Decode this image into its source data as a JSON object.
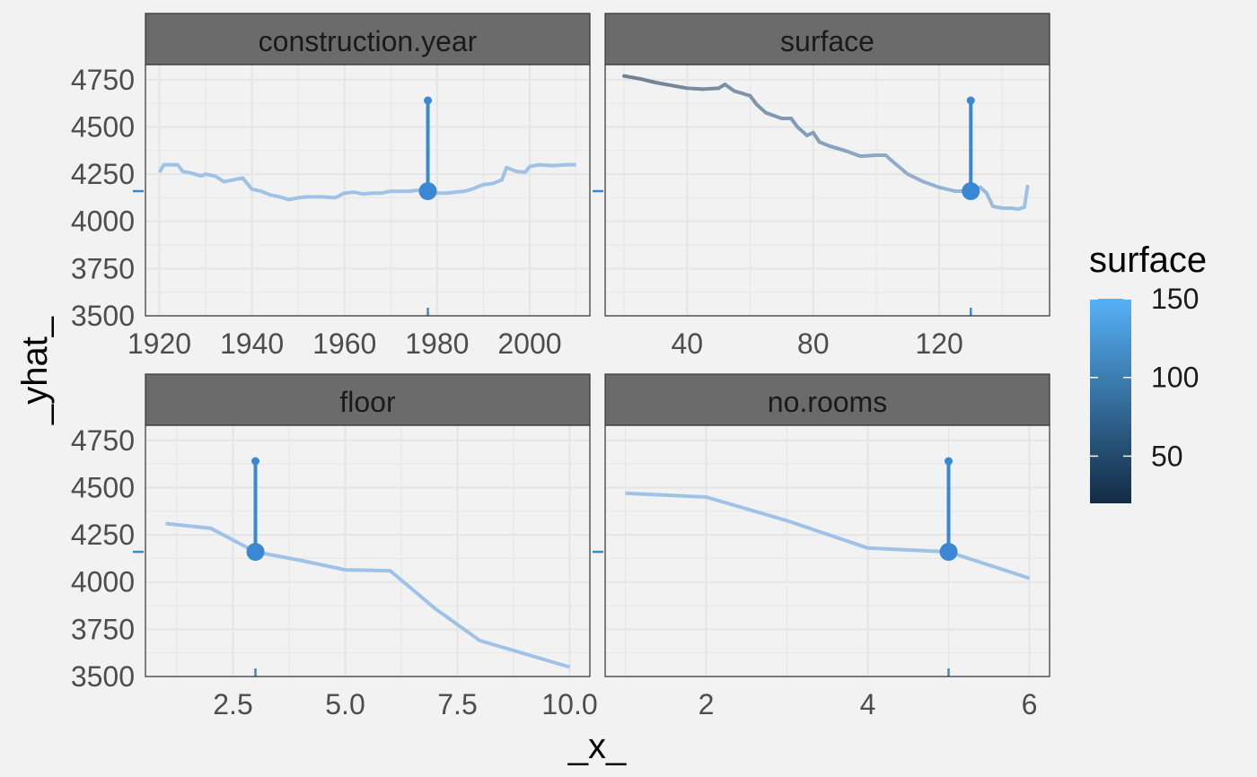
{
  "chart_data": {
    "type": "line",
    "title": "",
    "xlabel": "_x_",
    "ylabel": "_yhat_",
    "observation_yhat": 4160,
    "observation_marker_top": 4640,
    "y_ticks": [
      "3500",
      "3750",
      "4000",
      "4250",
      "4500",
      "4750"
    ],
    "legend": {
      "title": "surface",
      "position": "right",
      "ticks": [
        "50",
        "100",
        "150"
      ],
      "tick_values": [
        50,
        100,
        150
      ],
      "range": [
        20,
        150
      ],
      "color_low": "#132b43",
      "color_high": "#56b1f7"
    },
    "colors": {
      "profile_line": "#9fc3e7",
      "observation": "#3a88d4",
      "strip": "#6b6b6b",
      "panel": "#f2f2f2",
      "grid": "#e6e6e6"
    },
    "panels": [
      {
        "variable": "construction.year",
        "xlim": [
          1917,
          2013
        ],
        "ylim": [
          3500,
          4830
        ],
        "x_ticks": [
          "1920",
          "1940",
          "1960",
          "1980",
          "2000"
        ],
        "x_tick_values": [
          1920,
          1940,
          1960,
          1980,
          2000
        ],
        "observation_x": 1978,
        "x": [
          1920,
          1921,
          1922,
          1924,
          1925,
          1927,
          1929,
          1930,
          1932,
          1934,
          1936,
          1938,
          1940,
          1942,
          1944,
          1946,
          1948,
          1950,
          1952,
          1955,
          1958,
          1960,
          1962,
          1964,
          1966,
          1968,
          1970,
          1972,
          1974,
          1976,
          1978,
          1980,
          1982,
          1984,
          1986,
          1988,
          1990,
          1992,
          1994,
          1995,
          1997,
          1999,
          2000,
          2002,
          2005,
          2008,
          2010
        ],
        "y": [
          4260,
          4300,
          4300,
          4300,
          4265,
          4255,
          4240,
          4250,
          4240,
          4210,
          4220,
          4230,
          4170,
          4160,
          4140,
          4130,
          4115,
          4125,
          4130,
          4130,
          4125,
          4150,
          4155,
          4145,
          4150,
          4150,
          4160,
          4160,
          4160,
          4165,
          4160,
          4150,
          4150,
          4155,
          4160,
          4175,
          4195,
          4200,
          4220,
          4285,
          4265,
          4260,
          4290,
          4300,
          4295,
          4300,
          4300
        ]
      },
      {
        "variable": "surface",
        "xlim": [
          14,
          155
        ],
        "ylim": [
          3500,
          4830
        ],
        "x_ticks": [
          "40",
          "80",
          "120"
        ],
        "x_tick_values": [
          40,
          80,
          120
        ],
        "observation_x": 130,
        "x": [
          20,
          25,
          30,
          35,
          40,
          45,
          50,
          52,
          55,
          60,
          62,
          65,
          70,
          73,
          75,
          78,
          80,
          82,
          85,
          90,
          95,
          100,
          103,
          105,
          110,
          115,
          120,
          125,
          130,
          133,
          135,
          137,
          140,
          143,
          145,
          147,
          148
        ],
        "y": [
          4770,
          4755,
          4735,
          4720,
          4705,
          4700,
          4705,
          4725,
          4690,
          4665,
          4620,
          4575,
          4545,
          4545,
          4500,
          4455,
          4470,
          4420,
          4400,
          4375,
          4345,
          4350,
          4350,
          4320,
          4250,
          4210,
          4180,
          4160,
          4160,
          4180,
          4150,
          4080,
          4070,
          4070,
          4065,
          4075,
          4185
        ]
      },
      {
        "variable": "floor",
        "xlim": [
          0.55,
          10.45
        ],
        "ylim": [
          3500,
          4830
        ],
        "x_ticks": [
          "2.5",
          "5.0",
          "7.5",
          "10.0"
        ],
        "x_tick_values": [
          2.5,
          5.0,
          7.5,
          10.0
        ],
        "observation_x": 3,
        "x": [
          1,
          2,
          3,
          4,
          5,
          6,
          7,
          8,
          9,
          10
        ],
        "y": [
          4310,
          4285,
          4160,
          4115,
          4065,
          4060,
          3860,
          3690,
          3620,
          3550
        ]
      },
      {
        "variable": "no.rooms",
        "xlim": [
          0.75,
          6.25
        ],
        "ylim": [
          3500,
          4830
        ],
        "x_ticks": [
          "2",
          "4",
          "6"
        ],
        "x_tick_values": [
          2,
          4,
          6
        ],
        "observation_x": 5,
        "x": [
          1,
          2,
          3,
          4,
          5,
          6
        ],
        "y": [
          4470,
          4450,
          4325,
          4180,
          4160,
          4020
        ]
      }
    ]
  }
}
